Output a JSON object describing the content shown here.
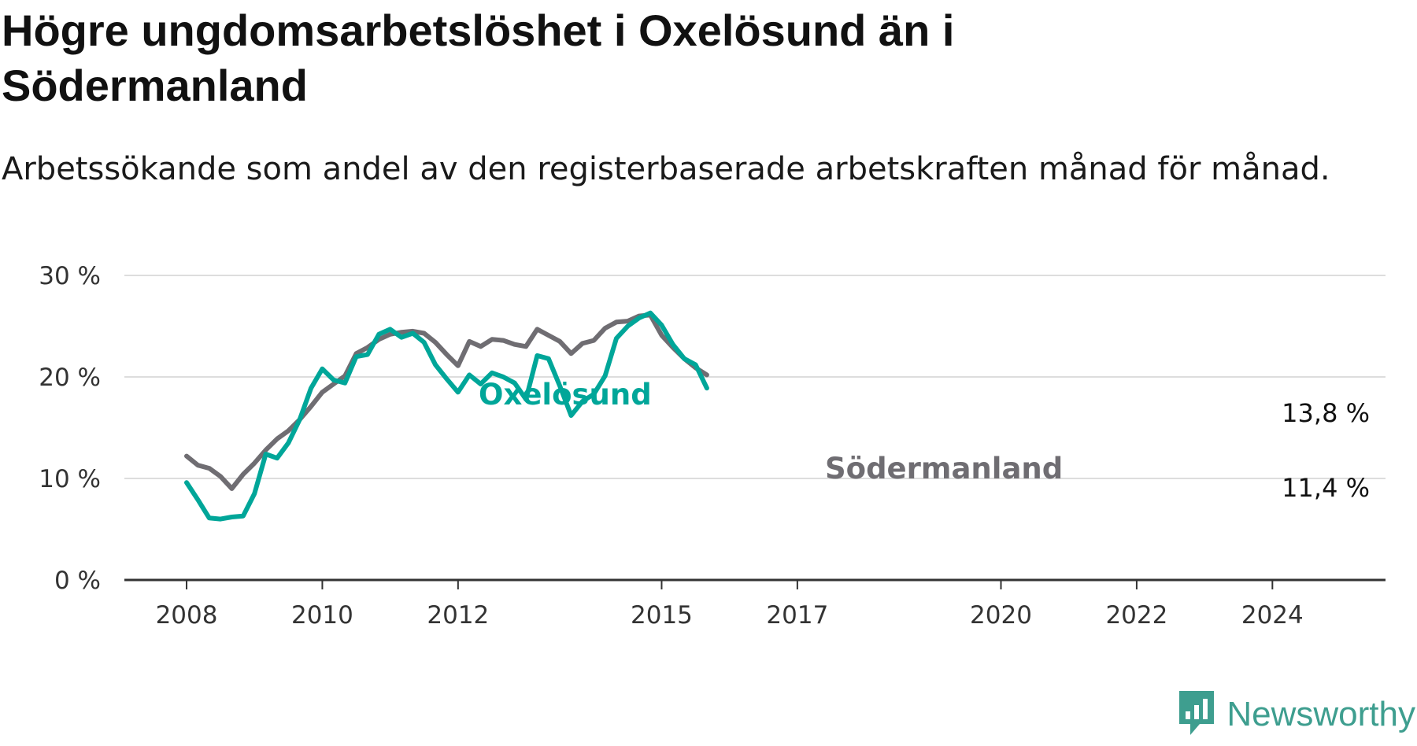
{
  "title": "Högre ungdomsarbetslöshet i Oxelösund än i Södermanland",
  "subtitle": "Arbetssökande som andel av den registerbaserade arbetskraften månad för månad.",
  "brand": {
    "name": "Newsworthy",
    "icon": "newsworthy-logo-icon",
    "color": "#3e9e8f"
  },
  "chart_data": {
    "type": "line",
    "title": "Högre ungdomsarbetslöshet i Oxelösund än i Södermanland",
    "subtitle": "Arbetssökande som andel av den registerbaserade arbetskraften månad för månad.",
    "xlabel": "",
    "ylabel": "",
    "x_ticks": [
      "2008",
      "2010",
      "2012",
      "2015",
      "2017",
      "2020",
      "2022",
      "2024"
    ],
    "y_ticks": [
      "0 %",
      "10 %",
      "20 %",
      "30 %"
    ],
    "ylim": [
      0,
      30
    ],
    "xlim": [
      "2007-02",
      "2025-09"
    ],
    "grid": true,
    "legend": "inline labels",
    "series": [
      {
        "name": "Oxelösund",
        "color": "#00a699",
        "end_label": "13,8 %",
        "points": [
          [
            "2008-01",
            9.6
          ],
          [
            "2008-03",
            7.9
          ],
          [
            "2008-05",
            6.1
          ],
          [
            "2008-07",
            6.0
          ],
          [
            "2008-09",
            6.2
          ],
          [
            "2008-11",
            6.3
          ],
          [
            "2009-01",
            8.5
          ],
          [
            "2009-03",
            12.4
          ],
          [
            "2009-05",
            12.0
          ],
          [
            "2009-07",
            13.5
          ],
          [
            "2009-09",
            15.8
          ],
          [
            "2009-11",
            18.9
          ],
          [
            "2010-01",
            20.8
          ],
          [
            "2010-03",
            19.7
          ],
          [
            "2010-05",
            19.4
          ],
          [
            "2010-07",
            22.0
          ],
          [
            "2010-09",
            22.2
          ],
          [
            "2010-11",
            24.2
          ],
          [
            "2011-01",
            24.7
          ],
          [
            "2011-03",
            23.9
          ],
          [
            "2011-05",
            24.3
          ],
          [
            "2011-07",
            23.4
          ],
          [
            "2011-09",
            21.2
          ],
          [
            "2011-11",
            19.8
          ],
          [
            "2012-01",
            18.5
          ],
          [
            "2012-03",
            20.2
          ],
          [
            "2012-05",
            19.3
          ],
          [
            "2012-07",
            20.4
          ],
          [
            "2012-09",
            20.0
          ],
          [
            "2012-11",
            19.4
          ],
          [
            "2013-01",
            17.8
          ],
          [
            "2013-03",
            22.1
          ],
          [
            "2013-05",
            21.8
          ],
          [
            "2013-07",
            19.1
          ],
          [
            "2013-09",
            16.2
          ],
          [
            "2013-11",
            17.6
          ],
          [
            "2014-01",
            18.3
          ],
          [
            "2014-03",
            20.1
          ],
          [
            "2014-05",
            23.8
          ],
          [
            "2014-07",
            25.0
          ],
          [
            "2014-09",
            25.8
          ],
          [
            "2014-11",
            26.3
          ],
          [
            "2015-01",
            25.1
          ],
          [
            "2015-03",
            23.2
          ],
          [
            "2015-05",
            21.8
          ],
          [
            "2015-07",
            21.2
          ],
          [
            "2015-09",
            18.9
          ]
        ]
      },
      {
        "name": "Södermanland",
        "color": "#6f6d72",
        "end_label": "11,4 %",
        "points": [
          [
            "2008-01",
            12.2
          ],
          [
            "2008-03",
            11.3
          ],
          [
            "2008-05",
            11.0
          ],
          [
            "2008-07",
            10.2
          ],
          [
            "2008-09",
            9.0
          ],
          [
            "2008-11",
            10.4
          ],
          [
            "2009-01",
            11.5
          ],
          [
            "2009-03",
            12.8
          ],
          [
            "2009-05",
            13.9
          ],
          [
            "2009-07",
            14.7
          ],
          [
            "2009-09",
            15.8
          ],
          [
            "2009-11",
            17.1
          ],
          [
            "2010-01",
            18.5
          ],
          [
            "2010-03",
            19.3
          ],
          [
            "2010-05",
            20.1
          ],
          [
            "2010-07",
            22.3
          ],
          [
            "2010-09",
            22.9
          ],
          [
            "2010-11",
            23.7
          ],
          [
            "2011-01",
            24.2
          ],
          [
            "2011-03",
            24.4
          ],
          [
            "2011-05",
            24.5
          ],
          [
            "2011-07",
            24.3
          ],
          [
            "2011-09",
            23.4
          ],
          [
            "2011-11",
            22.2
          ],
          [
            "2012-01",
            21.1
          ],
          [
            "2012-03",
            23.5
          ],
          [
            "2012-05",
            23.0
          ],
          [
            "2012-07",
            23.7
          ],
          [
            "2012-09",
            23.6
          ],
          [
            "2012-11",
            23.2
          ],
          [
            "2013-01",
            23.0
          ],
          [
            "2013-03",
            24.7
          ],
          [
            "2013-05",
            24.1
          ],
          [
            "2013-07",
            23.5
          ],
          [
            "2013-09",
            22.3
          ],
          [
            "2013-11",
            23.3
          ],
          [
            "2014-01",
            23.6
          ],
          [
            "2014-03",
            24.8
          ],
          [
            "2014-05",
            25.4
          ],
          [
            "2014-07",
            25.5
          ],
          [
            "2014-09",
            26.0
          ],
          [
            "2014-11",
            26.1
          ],
          [
            "2015-01",
            24.1
          ],
          [
            "2015-03",
            22.9
          ],
          [
            "2015-05",
            21.8
          ],
          [
            "2015-07",
            20.9
          ],
          [
            "2015-09",
            20.2
          ]
        ]
      }
    ]
  }
}
